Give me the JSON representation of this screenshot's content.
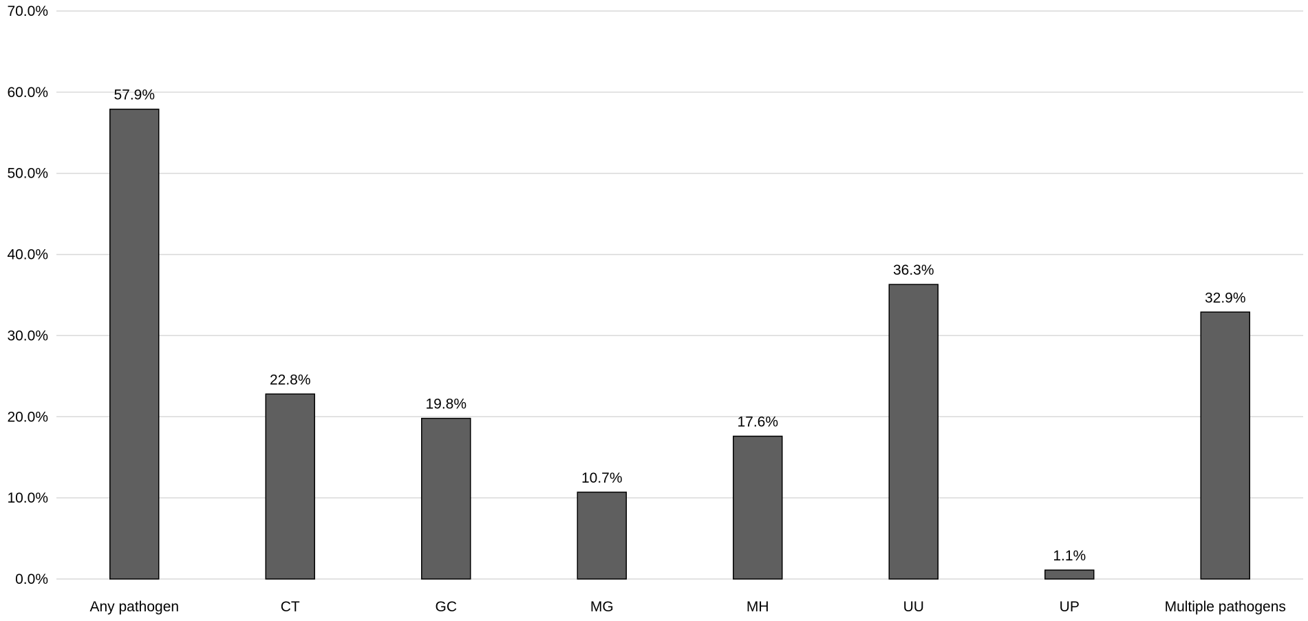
{
  "chart_data": {
    "type": "bar",
    "title": "",
    "xlabel": "",
    "ylabel": "",
    "categories": [
      "Any pathogen",
      "CT",
      "GC",
      "MG",
      "MH",
      "UU",
      "UP",
      "Multiple pathogens"
    ],
    "values": [
      57.9,
      22.8,
      19.8,
      10.7,
      17.6,
      36.3,
      1.1,
      32.9
    ],
    "data_labels": [
      "57.9%",
      "22.8%",
      "19.8%",
      "10.7%",
      "17.6%",
      "36.3%",
      "1.1%",
      "32.9%"
    ],
    "ylim": [
      0,
      70
    ],
    "yticks": [
      0,
      10,
      20,
      30,
      40,
      50,
      60,
      70
    ],
    "ytick_labels": [
      "0.0%",
      "10.0%",
      "20.0%",
      "30.0%",
      "40.0%",
      "50.0%",
      "60.0%",
      "70.0%"
    ],
    "grid": true,
    "legend": "none",
    "bar_color": "#5f5f5f",
    "bar_outline_color": "#000000",
    "grid_color": "#d9d9d9"
  }
}
